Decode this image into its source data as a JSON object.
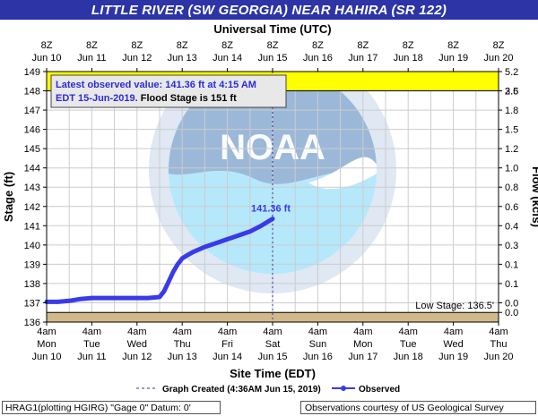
{
  "page_title": "LITTLE RIVER (SW GEORGIA) NEAR HAHIRA (SR 122)",
  "chart_data": {
    "type": "line",
    "top_axis": {
      "label": "Universal Time (UTC)",
      "ticks": [
        {
          "line1": "8Z",
          "line2": "Jun 10"
        },
        {
          "line1": "8Z",
          "line2": "Jun 11"
        },
        {
          "line1": "8Z",
          "line2": "Jun 12"
        },
        {
          "line1": "8Z",
          "line2": "Jun 13"
        },
        {
          "line1": "8Z",
          "line2": "Jun 14"
        },
        {
          "line1": "8Z",
          "line2": "Jun 15"
        },
        {
          "line1": "8Z",
          "line2": "Jun 16"
        },
        {
          "line1": "8Z",
          "line2": "Jun 17"
        },
        {
          "line1": "8Z",
          "line2": "Jun 18"
        },
        {
          "line1": "8Z",
          "line2": "Jun 19"
        },
        {
          "line1": "8Z",
          "line2": "Jun 20"
        }
      ]
    },
    "bottom_axis": {
      "label": "Site Time (EDT)",
      "ticks": [
        {
          "l1": "4am",
          "l2": "Mon",
          "l3": "Jun 10"
        },
        {
          "l1": "4am",
          "l2": "Tue",
          "l3": "Jun 11"
        },
        {
          "l1": "4am",
          "l2": "Wed",
          "l3": "Jun 12"
        },
        {
          "l1": "4am",
          "l2": "Thu",
          "l3": "Jun 13"
        },
        {
          "l1": "4am",
          "l2": "Fri",
          "l3": "Jun 14"
        },
        {
          "l1": "4am",
          "l2": "Sat",
          "l3": "Jun 15"
        },
        {
          "l1": "4am",
          "l2": "Sun",
          "l3": "Jun 16"
        },
        {
          "l1": "4am",
          "l2": "Mon",
          "l3": "Jun 17"
        },
        {
          "l1": "4am",
          "l2": "Tue",
          "l3": "Jun 18"
        },
        {
          "l1": "4am",
          "l2": "Wed",
          "l3": "Jun 19"
        },
        {
          "l1": "4am",
          "l2": "Thu",
          "l3": "Jun 20"
        }
      ]
    },
    "x_range_days": [
      0,
      10
    ],
    "y_left": {
      "label": "Stage (ft)",
      "range": [
        136,
        149
      ],
      "ticks": [
        136,
        137,
        138,
        139,
        140,
        141,
        142,
        143,
        144,
        145,
        146,
        147,
        148,
        149
      ]
    },
    "y_right": {
      "label": "Flow (kcfs)",
      "ticks": [
        {
          "stage": 136.5,
          "label": "0.0"
        },
        {
          "stage": 137.0,
          "label": "0.0"
        },
        {
          "stage": 138.0,
          "label": "0.1"
        },
        {
          "stage": 139.0,
          "label": "0.1"
        },
        {
          "stage": 140.0,
          "label": "0.3"
        },
        {
          "stage": 141.0,
          "label": "0.4"
        },
        {
          "stage": 142.0,
          "label": "0.6"
        },
        {
          "stage": 143.0,
          "label": "0.8"
        },
        {
          "stage": 144.0,
          "label": "1.0"
        },
        {
          "stage": 145.0,
          "label": "1.2"
        },
        {
          "stage": 146.0,
          "label": "1.5"
        },
        {
          "stage": 147.0,
          "label": "1.8"
        },
        {
          "stage": 148.0,
          "label": "2.5"
        },
        {
          "stage": 148.0,
          "label": "3.6"
        },
        {
          "stage": 149.0,
          "label": "5.2"
        }
      ]
    },
    "graph_created_day": 5.0,
    "flood_band": [
      148,
      149
    ],
    "low_band": [
      136,
      136.5
    ],
    "series": [
      {
        "name": "Observed",
        "x": [
          0,
          0.25,
          0.5,
          0.75,
          1.0,
          1.25,
          1.5,
          1.75,
          2.0,
          2.25,
          2.5,
          2.6,
          2.7,
          2.8,
          2.9,
          3.0,
          3.1,
          3.25,
          3.5,
          3.75,
          4.0,
          4.25,
          4.5,
          4.75,
          5.0
        ],
        "y": [
          137.05,
          137.05,
          137.1,
          137.2,
          137.25,
          137.25,
          137.25,
          137.25,
          137.25,
          137.25,
          137.3,
          137.6,
          138.1,
          138.6,
          139.0,
          139.3,
          139.45,
          139.65,
          139.9,
          140.1,
          140.3,
          140.5,
          140.7,
          141.0,
          141.36
        ]
      }
    ],
    "latest_label": "141.36 ft",
    "info_box": {
      "line1": "Latest observed value: 141.36 ft at 4:15 AM",
      "line2_blue": "EDT 15-Jun-2019.",
      "line2_black": " Flood Stage is 151 ft"
    },
    "low_stage_label": "Low Stage: 136.5'",
    "legend": {
      "created_label": "Graph Created (4:36AM Jun 15, 2019)",
      "observed_label": "Observed"
    },
    "watermark_text": "NOAA",
    "colors": {
      "title_bar": "#2c34a6",
      "flood_band": "#ffff00",
      "low_band": "#d2b98c",
      "series": "#3a3ae8",
      "info_text": "#2b2bd8",
      "grid": "#cccccc",
      "watermark_dark": "#9cb8d8",
      "watermark_light": "#b6e8fb"
    }
  },
  "footer": {
    "left": "HRAG1(plotting HGIRG) \"Gage 0\" Datum: 0'",
    "right": "Observations courtesy of US Geological Survey"
  }
}
